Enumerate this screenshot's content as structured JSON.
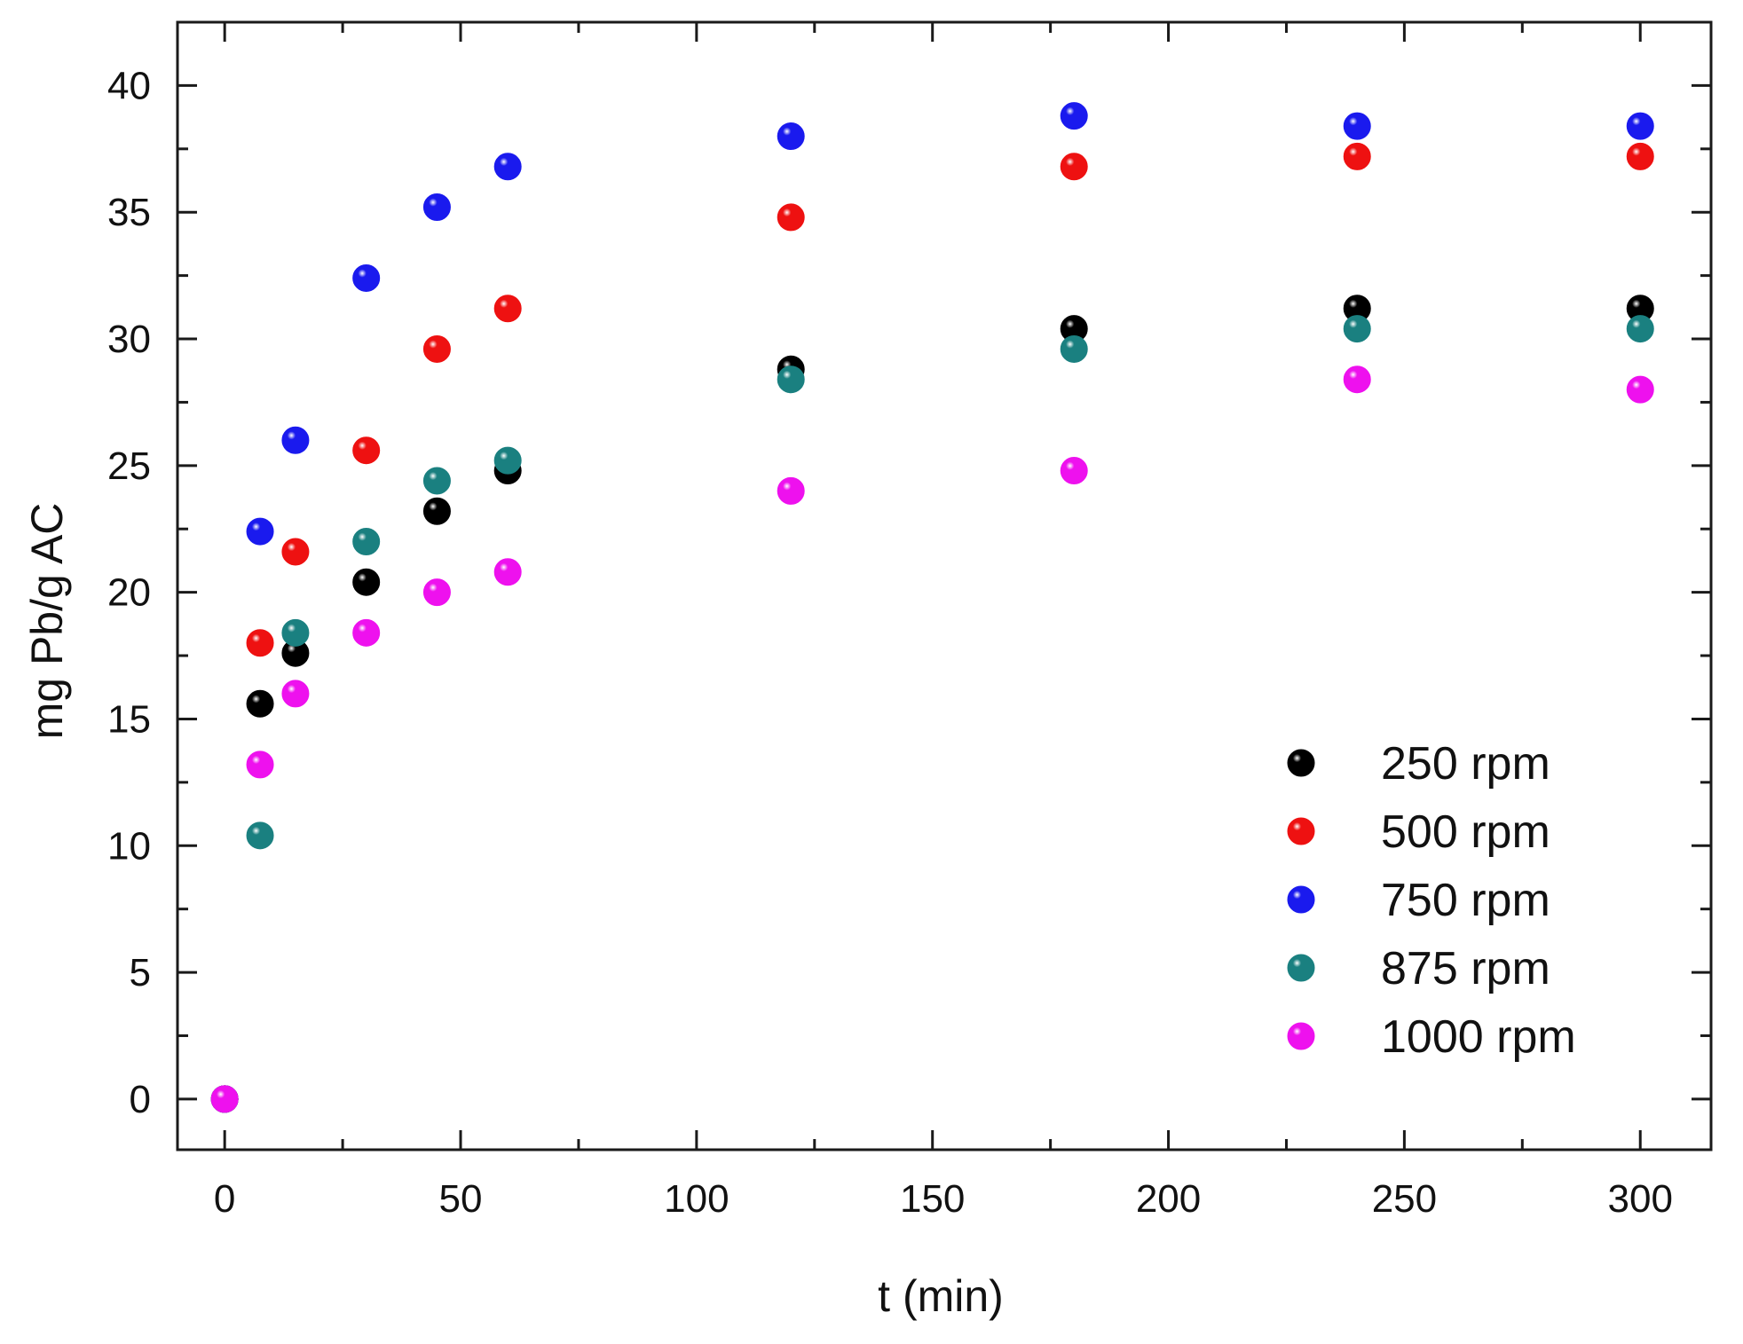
{
  "chart_data": {
    "type": "scatter",
    "title": "",
    "xlabel": "t (min)",
    "ylabel": "mg Pb/g AC",
    "xlim": [
      -10,
      315
    ],
    "ylim": [
      -2,
      42.5
    ],
    "xticks": [
      0,
      50,
      100,
      150,
      200,
      250,
      300
    ],
    "xtick_labels": [
      "0",
      "50",
      "100",
      "150",
      "200",
      "250",
      "300"
    ],
    "yticks": [
      0,
      5,
      10,
      15,
      20,
      25,
      30,
      35,
      40
    ],
    "ytick_labels": [
      "0",
      "5",
      "10",
      "15",
      "20",
      "25",
      "30",
      "35",
      "40"
    ],
    "grid": false,
    "legend_position": "bottom-right",
    "series": [
      {
        "name": "250 rpm",
        "color": "#000000",
        "x": [
          0,
          7.5,
          15,
          30,
          45,
          60,
          120,
          180,
          240,
          300
        ],
        "y": [
          0,
          15.6,
          17.6,
          20.4,
          23.2,
          24.8,
          28.8,
          30.4,
          31.2,
          31.2
        ]
      },
      {
        "name": "500 rpm",
        "color": "#ee1111",
        "x": [
          0,
          7.5,
          15,
          30,
          45,
          60,
          120,
          180,
          240,
          300
        ],
        "y": [
          0,
          18.0,
          21.6,
          25.6,
          29.6,
          31.2,
          34.8,
          36.8,
          37.2,
          37.2
        ]
      },
      {
        "name": "750 rpm",
        "color": "#1a1aee",
        "x": [
          0,
          7.5,
          15,
          30,
          45,
          60,
          120,
          180,
          240,
          300
        ],
        "y": [
          0,
          22.4,
          26.0,
          32.4,
          35.2,
          36.8,
          38.0,
          38.8,
          38.4,
          38.4
        ]
      },
      {
        "name": "875 rpm",
        "color": "#1a8080",
        "x": [
          0,
          7.5,
          15,
          30,
          45,
          60,
          120,
          180,
          240,
          300
        ],
        "y": [
          0,
          10.4,
          18.4,
          22.0,
          24.4,
          25.2,
          28.4,
          29.6,
          30.4,
          30.4
        ]
      },
      {
        "name": "1000 rpm",
        "color": "#ee11ee",
        "x": [
          0,
          7.5,
          15,
          30,
          45,
          60,
          120,
          180,
          240,
          300
        ],
        "y": [
          0,
          13.2,
          16.0,
          18.4,
          20.0,
          20.8,
          24.0,
          24.8,
          28.4,
          28.0
        ]
      }
    ]
  }
}
